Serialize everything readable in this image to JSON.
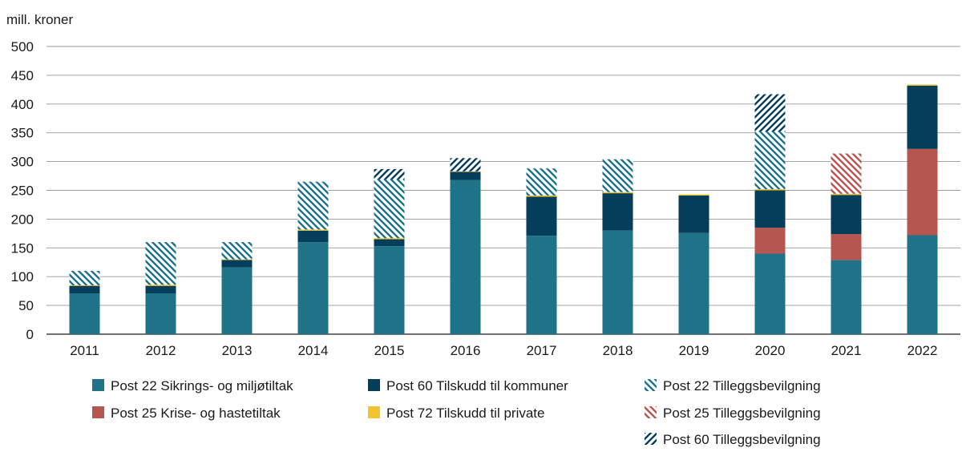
{
  "chart_data": {
    "type": "bar",
    "stacked": true,
    "ylabel": "mill. kroner",
    "xlabel": "",
    "ylim": [
      0,
      500
    ],
    "yticks": [
      0,
      50,
      100,
      150,
      200,
      250,
      300,
      350,
      400,
      450,
      500
    ],
    "categories": [
      "2011",
      "2012",
      "2013",
      "2014",
      "2015",
      "2016",
      "2017",
      "2018",
      "2019",
      "2020",
      "2021",
      "2022"
    ],
    "grid": true,
    "legend_position": "bottom",
    "series": [
      {
        "name": "Post 22 Sikrings- og miljøtiltak",
        "color": "#1e7389",
        "pattern": "solid",
        "values": [
          71,
          71,
          116,
          160,
          153,
          268,
          171,
          180,
          176,
          140,
          129,
          172
        ]
      },
      {
        "name": "Post 25 Krise- og hastetiltak",
        "color": "#b5564f",
        "pattern": "solid",
        "values": [
          0,
          0,
          0,
          0,
          0,
          0,
          0,
          0,
          0,
          45,
          45,
          150
        ]
      },
      {
        "name": "Post 60 Tilskudd til kommuner",
        "color": "#053e5a",
        "pattern": "solid",
        "values": [
          13,
          13,
          13,
          20,
          12,
          14,
          68,
          65,
          65,
          65,
          68,
          110
        ]
      },
      {
        "name": "Post 72 Tilskudd til private",
        "color": "#f4c430",
        "pattern": "solid",
        "values": [
          1,
          2,
          1,
          2,
          2,
          1,
          2,
          2,
          2,
          2,
          2,
          2
        ]
      },
      {
        "name": "Post 22 Tilleggsbevilgning",
        "color": "#1e7389",
        "pattern": "hatch-back",
        "values": [
          25,
          74,
          30,
          83,
          102,
          0,
          47,
          57,
          0,
          100,
          0,
          0
        ]
      },
      {
        "name": "Post 25 Tilleggsbevilgning",
        "color": "#b5564f",
        "pattern": "hatch-back",
        "values": [
          0,
          0,
          0,
          0,
          0,
          0,
          0,
          0,
          0,
          0,
          70,
          0
        ]
      },
      {
        "name": "Post 60 Tilleggsbevilgning",
        "color": "#053e5a",
        "pattern": "hatch-fwd",
        "values": [
          0,
          0,
          0,
          0,
          18,
          23,
          0,
          0,
          0,
          65,
          0,
          0
        ]
      }
    ],
    "legend_order": [
      0,
      2,
      4,
      1,
      3,
      5,
      6
    ]
  }
}
